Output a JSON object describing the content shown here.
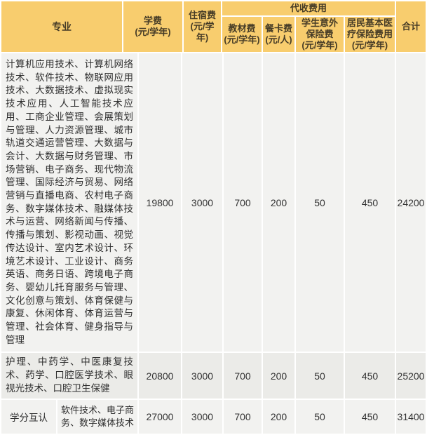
{
  "colors": {
    "header_bg": "#f8cd6e",
    "header_text": "#453b26",
    "row_bg": "#f2f2f0",
    "row_alt_bg": "#ebebe8",
    "divider": "#ffffff",
    "body_text": "#333333"
  },
  "table": {
    "header": {
      "major": "专业",
      "tuition_label": "学费",
      "tuition_unit": "(元/学年)",
      "accommodation_label": "住宿费",
      "accommodation_unit": "(元/学年)",
      "collected_group": "代收费用",
      "textbook_label": "教材费",
      "textbook_unit": "(元/学年)",
      "meal_label": "餐卡费",
      "meal_unit": "(元/人)",
      "accident_label": "学生意外保险费",
      "accident_unit": "(元/学年)",
      "medical_label": "居民基本医疗保险费用",
      "medical_unit": "(元/学年)",
      "total": "合计"
    },
    "rows": [
      {
        "major": "计算机应用技术、计算机网络技术、软件技术、物联网应用技术、大数据技术、虚拟现实技术应用、人工智能技术应用、工商企业管理、会展策划与管理、人力资源管理、城市轨道交通运营管理、大数据与会计、大数据与财务管理、市场营销、电子商务、现代物流管理、国际经济与贸易、网络营销与直播电商、农村电子商务、数字媒体技术、融媒体技术与运营、网络新闻与传播、传播与策划、影视动画、视觉传达设计、室内艺术设计、环境艺术设计、工业设计、商务英语、商务日语、跨境电子商务、婴幼儿托育服务与管理、文化创意与策划、体育保健与康复、休闲体育、体育运营与管理、社会体育、健身指导与管理",
        "tuition": "19800",
        "accommodation": "3000",
        "textbook": "700",
        "meal": "200",
        "accident": "50",
        "medical": "450",
        "total": "24200"
      },
      {
        "major": "护理、中药学、中医康复技术、药学、口腔医学技术、眼视光技术、口腔卫生保健",
        "tuition": "20800",
        "accommodation": "3000",
        "textbook": "700",
        "meal": "200",
        "accident": "50",
        "medical": "450",
        "total": "25200"
      },
      {
        "category": "学分互认",
        "major": "软件技术、电子商务、数字媒体技术",
        "tuition": "27000",
        "accommodation": "3000",
        "textbook": "700",
        "meal": "200",
        "accident": "50",
        "medical": "450",
        "total": "31400"
      }
    ]
  }
}
